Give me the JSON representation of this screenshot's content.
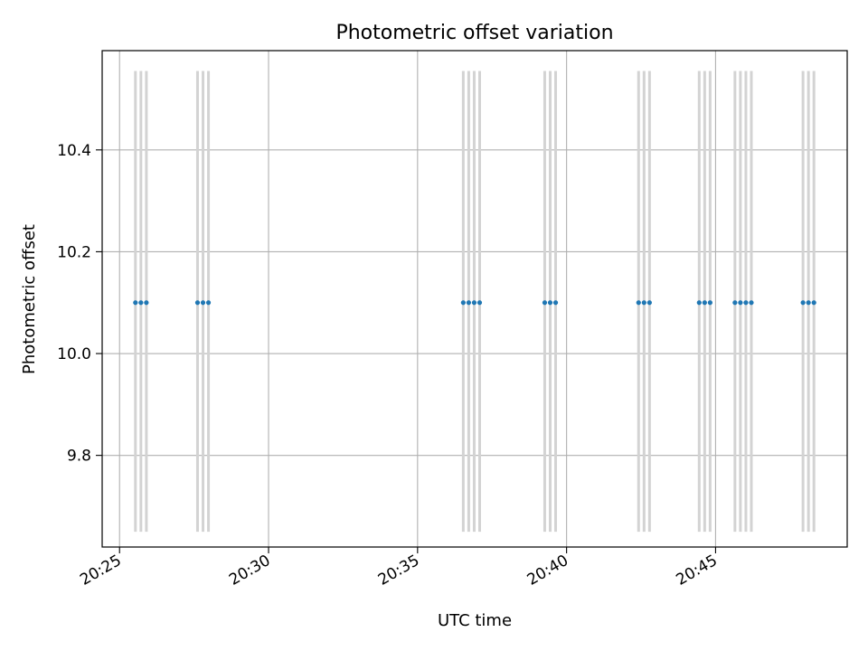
{
  "chart_data": {
    "type": "scatter",
    "title": "Photometric offset variation",
    "xlabel": "UTC time",
    "ylabel": "Photometric offset",
    "x_ticks": [
      "20:25",
      "20:30",
      "20:35",
      "20:40",
      "20:45"
    ],
    "y_ticks": [
      "9.8",
      "10.0",
      "10.2",
      "10.4"
    ],
    "xlim": [
      "20:24:25",
      "20:49:25"
    ],
    "ylim": [
      9.62,
      10.595
    ],
    "grid": true,
    "series": [
      {
        "color": "#1f77b4",
        "x": [
          "20:25:32",
          "20:25:43",
          "20:25:54",
          "20:27:37",
          "20:27:48",
          "20:27:59",
          "20:36:32",
          "20:36:43",
          "20:36:54",
          "20:37:05",
          "20:39:16",
          "20:39:27",
          "20:39:38",
          "20:42:25",
          "20:42:36",
          "20:42:47",
          "20:44:27",
          "20:44:38",
          "20:44:49",
          "20:45:39",
          "20:45:50",
          "20:46:01",
          "20:46:12",
          "20:47:56",
          "20:48:07",
          "20:48:18"
        ],
        "y": [
          10.1,
          10.1,
          10.1,
          10.1,
          10.1,
          10.1,
          10.1,
          10.1,
          10.1,
          10.1,
          10.1,
          10.1,
          10.1,
          10.1,
          10.1,
          10.1,
          10.1,
          10.1,
          10.1,
          10.1,
          10.1,
          10.1,
          10.1,
          10.1,
          10.1,
          10.1
        ]
      }
    ],
    "vlines": {
      "color": "#d3d3d3",
      "ymin": 9.65,
      "ymax": 10.555
    }
  }
}
